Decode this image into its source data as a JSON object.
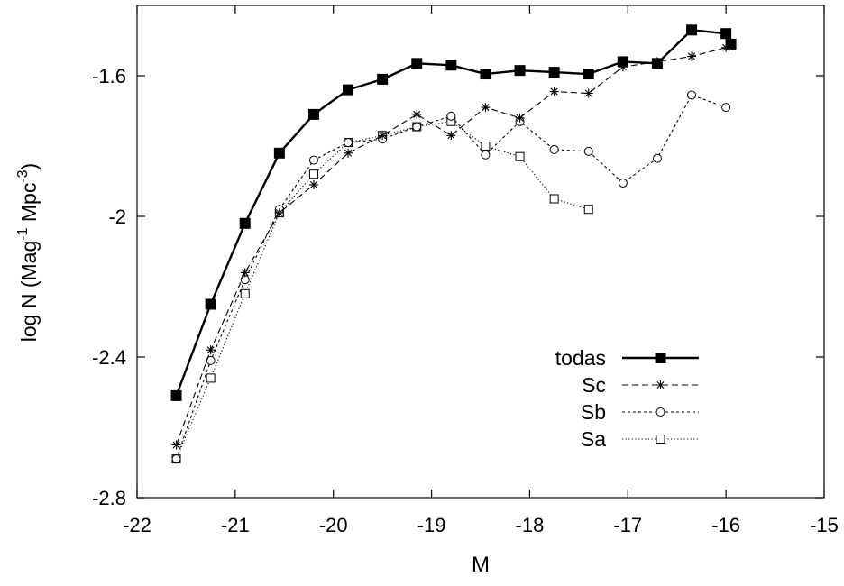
{
  "chart_data": {
    "type": "line",
    "title": "",
    "xlabel": "M",
    "ylabel": "log N (Mag",
    "ylabel_sup1": "-1",
    "ylabel_mid": " Mpc",
    "ylabel_sup2": "-3",
    "ylabel_end": ")",
    "xlim": [
      -22,
      -15
    ],
    "ylim": [
      -2.8,
      -1.4
    ],
    "xticks": [
      -22,
      -21,
      -20,
      -19,
      -18,
      -17,
      -16,
      -15
    ],
    "yticks": [
      -2.8,
      -2.4,
      -2,
      -1.6
    ],
    "xtick_labels": [
      "-22",
      "-21",
      "-20",
      "-19",
      "-18",
      "-17",
      "-16",
      "-15"
    ],
    "ytick_labels": [
      "-2.8",
      "-2.4",
      "-2",
      "-1.6"
    ],
    "grid": false,
    "legend_position": "bottom-right",
    "series": [
      {
        "name": "todas",
        "marker": "filled-square",
        "dash": "solid",
        "x": [
          -21.6,
          -21.25,
          -20.9,
          -20.55,
          -20.2,
          -19.85,
          -19.5,
          -19.15,
          -18.8,
          -18.45,
          -18.1,
          -17.75,
          -17.4,
          -17.05,
          -16.7,
          -16.35,
          -16.0,
          -15.95
        ],
        "y": [
          -2.51,
          -2.25,
          -2.02,
          -1.82,
          -1.71,
          -1.64,
          -1.61,
          -1.565,
          -1.57,
          -1.595,
          -1.585,
          -1.59,
          -1.595,
          -1.56,
          -1.565,
          -1.47,
          -1.48,
          -1.51
        ]
      },
      {
        "name": "Sc",
        "marker": "star",
        "dash": "dashed",
        "x": [
          -21.6,
          -21.25,
          -20.9,
          -20.55,
          -20.2,
          -19.85,
          -19.5,
          -19.15,
          -18.8,
          -18.45,
          -18.1,
          -17.75,
          -17.4,
          -17.05,
          -16.7,
          -16.35,
          -16.0
        ],
        "y": [
          -2.65,
          -2.38,
          -2.16,
          -1.99,
          -1.91,
          -1.82,
          -1.77,
          -1.71,
          -1.77,
          -1.69,
          -1.72,
          -1.645,
          -1.65,
          -1.575,
          -1.56,
          -1.545,
          -1.52
        ]
      },
      {
        "name": "Sb",
        "marker": "open-circle",
        "dash": "short-dashed",
        "x": [
          -21.6,
          -21.25,
          -20.9,
          -20.55,
          -20.2,
          -19.85,
          -19.5,
          -19.15,
          -18.8,
          -18.45,
          -18.1,
          -17.75,
          -17.4,
          -17.05,
          -16.7,
          -16.35,
          -16.0
        ],
        "y": [
          -2.69,
          -2.41,
          -2.18,
          -1.98,
          -1.84,
          -1.79,
          -1.78,
          -1.745,
          -1.715,
          -1.825,
          -1.73,
          -1.81,
          -1.815,
          -1.905,
          -1.835,
          -1.655,
          -1.69
        ]
      },
      {
        "name": "Sa",
        "marker": "open-square",
        "dash": "dotted",
        "x": [
          -21.6,
          -21.25,
          -20.9,
          -20.55,
          -20.2,
          -19.85,
          -19.5,
          -19.15,
          -18.8,
          -18.45,
          -18.1,
          -17.75,
          -17.4
        ],
        "y": [
          -2.69,
          -2.46,
          -2.22,
          -1.99,
          -1.88,
          -1.79,
          -1.77,
          -1.745,
          -1.73,
          -1.8,
          -1.83,
          -1.95,
          -1.98
        ]
      }
    ]
  }
}
